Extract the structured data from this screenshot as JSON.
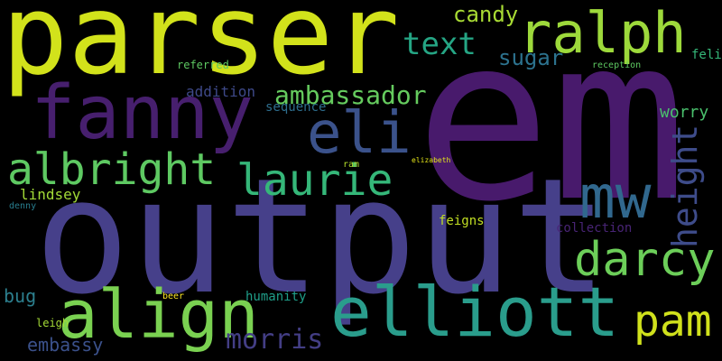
{
  "words": [
    {
      "text": "parser",
      "color": "#d2e21b"
    },
    {
      "text": "em",
      "color": "#481a6c"
    },
    {
      "text": "output",
      "color": "#46408a"
    },
    {
      "text": "ralph",
      "color": "#9dd93b"
    },
    {
      "text": "fanny",
      "color": "#471f6e"
    },
    {
      "text": "eli",
      "color": "#3b528b"
    },
    {
      "text": "elliott",
      "color": "#2a9d8c"
    },
    {
      "text": "align",
      "color": "#7ad151"
    },
    {
      "text": "albright",
      "color": "#5ec962"
    },
    {
      "text": "laurie",
      "color": "#35b779"
    },
    {
      "text": "mw",
      "color": "#31688e"
    },
    {
      "text": "darcy",
      "color": "#6cce59"
    },
    {
      "text": "pam",
      "color": "#d0e11c"
    },
    {
      "text": "text",
      "color": "#25a584"
    },
    {
      "text": "candy",
      "color": "#a8db34"
    },
    {
      "text": "ambassador",
      "color": "#65cb5e"
    },
    {
      "text": "height",
      "color": "#3e4c8a"
    },
    {
      "text": "morris",
      "color": "#433e85"
    },
    {
      "text": "sugar",
      "color": "#2c728e"
    },
    {
      "text": "worry",
      "color": "#4ac16d"
    },
    {
      "text": "embassy",
      "color": "#3b518b"
    },
    {
      "text": "addition",
      "color": "#3e4989"
    },
    {
      "text": "collection",
      "color": "#482475"
    },
    {
      "text": "lindsey",
      "color": "#a2da37"
    },
    {
      "text": "referred",
      "color": "#5ec962"
    },
    {
      "text": "sequence",
      "color": "#2e6e8e"
    },
    {
      "text": "humanity",
      "color": "#1f9e89"
    },
    {
      "text": "bug",
      "color": "#2c7f8e"
    },
    {
      "text": "felix",
      "color": "#35b779"
    },
    {
      "text": "feigns",
      "color": "#c2df23"
    },
    {
      "text": "leigh",
      "color": "#a5db36"
    },
    {
      "text": "beer",
      "color": "#fde725"
    },
    {
      "text": "ram",
      "color": "#b5de2b"
    },
    {
      "text": "denny",
      "color": "#287d8e"
    },
    {
      "text": "reception",
      "color": "#5ec962"
    },
    {
      "text": "elizabeth",
      "color": "#e4e419"
    }
  ]
}
